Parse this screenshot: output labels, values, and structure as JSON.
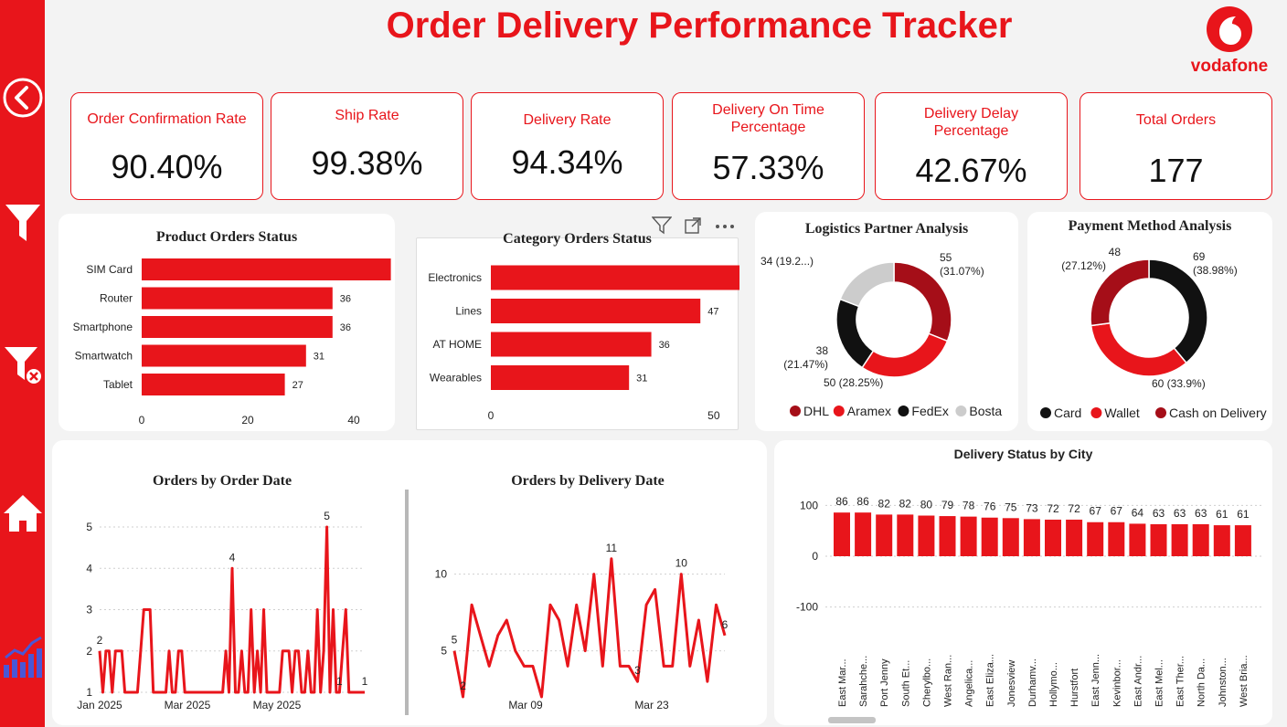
{
  "header": {
    "title": "Order Delivery Performance Tracker",
    "logo_text": "vodafone"
  },
  "colors": {
    "accent": "#e8151b",
    "dark_red": "#a50e18",
    "black": "#111111",
    "grey": "#cccccc",
    "text": "#222222"
  },
  "sidebar": {
    "icons": [
      "back-arrow-icon",
      "filter-icon",
      "clear-filter-icon",
      "home-icon",
      "chart-icon"
    ]
  },
  "kpis": [
    {
      "label": "Order Confirmation Rate",
      "value": "90.40%"
    },
    {
      "label": "Ship Rate",
      "value": "99.38%"
    },
    {
      "label": "Delivery Rate",
      "value": "94.34%"
    },
    {
      "label": "Delivery On Time Percentage",
      "value": "57.33%"
    },
    {
      "label": "Delivery Delay Percentage",
      "value": "42.67%"
    },
    {
      "label": "Total Orders",
      "value": "177"
    }
  ],
  "chart_data": [
    {
      "id": "product",
      "type": "bar",
      "orientation": "horizontal",
      "title": "Product Orders Status",
      "categories": [
        "SIM Card",
        "Router",
        "Smartphone",
        "Smartwatch",
        "Tablet"
      ],
      "values": [
        47,
        36,
        36,
        31,
        27
      ],
      "xlim": [
        0,
        50
      ],
      "xticks": [
        "0",
        "20",
        "40"
      ]
    },
    {
      "id": "category",
      "type": "bar",
      "orientation": "horizontal",
      "title": "Category Orders Status",
      "categories": [
        "Electronics",
        "Lines",
        "AT HOME",
        "Wearables"
      ],
      "values": [
        63,
        47,
        36,
        31
      ],
      "xlim": [
        0,
        65
      ],
      "xticks": [
        "0",
        "50"
      ]
    },
    {
      "id": "logistics",
      "type": "pie",
      "title": "Logistics Partner Analysis",
      "slices": [
        {
          "name": "DHL",
          "value": 55,
          "label_value": "55",
          "label_pct": "(31.07%)",
          "color": "#a50e18"
        },
        {
          "name": "Aramex",
          "value": 50,
          "label_value": "50 (28.25%)",
          "label_pct": "",
          "color": "#e8151b"
        },
        {
          "name": "FedEx",
          "value": 38,
          "label_value": "38",
          "label_pct": "(21.47%)",
          "color": "#111111"
        },
        {
          "name": "Bosta",
          "value": 34,
          "label_value": "34 (19.2...)",
          "label_pct": "",
          "color": "#cccccc"
        }
      ],
      "legend": "bottom"
    },
    {
      "id": "payment",
      "type": "pie",
      "title": "Payment Method Analysis",
      "slices": [
        {
          "name": "Card",
          "value": 69,
          "label_value": "69",
          "label_pct": "(38.98%)",
          "color": "#111111"
        },
        {
          "name": "Wallet",
          "value": 60,
          "label_value": "60 (33.9%)",
          "label_pct": "",
          "color": "#e8151b"
        },
        {
          "name": "Cash on Delivery",
          "value": 48,
          "label_value": "48",
          "label_pct": "(27.12%)",
          "color": "#a50e18"
        }
      ],
      "legend": "bottom"
    },
    {
      "id": "order_date",
      "type": "line",
      "title": "Orders by Order Date",
      "ylim": [
        1,
        5
      ],
      "yticks": [
        1,
        2,
        3,
        4,
        5
      ],
      "xticks": [
        "Jan 2025",
        "Mar 2025",
        "May 2025"
      ],
      "values": [
        2,
        1,
        2,
        2,
        1,
        2,
        2,
        2,
        1,
        1,
        1,
        1,
        1,
        2,
        3,
        3,
        3,
        1,
        1,
        1,
        1,
        1,
        2,
        1,
        1,
        2,
        2,
        1,
        1,
        1,
        1,
        1,
        1,
        1,
        1,
        1,
        1,
        1,
        1,
        1,
        2,
        1,
        4,
        1,
        1,
        2,
        1,
        1,
        3,
        1,
        2,
        1,
        3,
        1,
        1,
        1,
        1,
        1,
        2,
        2,
        2,
        1,
        2,
        2,
        1,
        1,
        2,
        1,
        1,
        3,
        1,
        2,
        5,
        1,
        3,
        1,
        1,
        2,
        3,
        1,
        1,
        1,
        1,
        1,
        1
      ],
      "annotations": [
        {
          "index": 0,
          "text": "2"
        },
        {
          "index": 42,
          "text": "4"
        },
        {
          "index": 72,
          "text": "5"
        },
        {
          "index": 76,
          "text": "1"
        },
        {
          "index": 84,
          "text": "1"
        }
      ]
    },
    {
      "id": "delivery_date",
      "type": "line",
      "title": "Orders by Delivery Date",
      "ylim": [
        2,
        12
      ],
      "yticks": [
        5,
        10
      ],
      "xticks": [
        "Mar 09",
        "Mar 23"
      ],
      "values": [
        5,
        2,
        8,
        6,
        4,
        6,
        7,
        5,
        4,
        4,
        2,
        8,
        7,
        4,
        8,
        5,
        10,
        4,
        11,
        4,
        4,
        3,
        8,
        9,
        4,
        4,
        10,
        4,
        7,
        3,
        8,
        6
      ],
      "annotations": [
        {
          "index": 0,
          "text": "5"
        },
        {
          "index": 1,
          "text": "2"
        },
        {
          "index": 18,
          "text": "11"
        },
        {
          "index": 21,
          "text": "3"
        },
        {
          "index": 26,
          "text": "10"
        },
        {
          "index": 31,
          "text": "6"
        }
      ]
    },
    {
      "id": "city",
      "type": "bar",
      "title": "Delivery Status by City",
      "categories": [
        "East Mar...",
        "Sarahche...",
        "Port Jenny",
        "South Et...",
        "Cherylbo...",
        "West Ran...",
        "Angelica...",
        "East Eliza...",
        "Jonesview",
        "Durhamv...",
        "Hollymo...",
        "Hurstfort",
        "East Jenn...",
        "Kevinbor...",
        "East Andr...",
        "East Mel...",
        "East Ther...",
        "North Da...",
        "Johnston...",
        "West Bria..."
      ],
      "values": [
        86,
        86,
        82,
        82,
        80,
        79,
        78,
        76,
        75,
        73,
        72,
        72,
        67,
        67,
        64,
        63,
        63,
        63,
        61,
        61
      ],
      "ylim": [
        -150,
        120
      ],
      "yticks": [
        100,
        0,
        -100
      ]
    }
  ]
}
